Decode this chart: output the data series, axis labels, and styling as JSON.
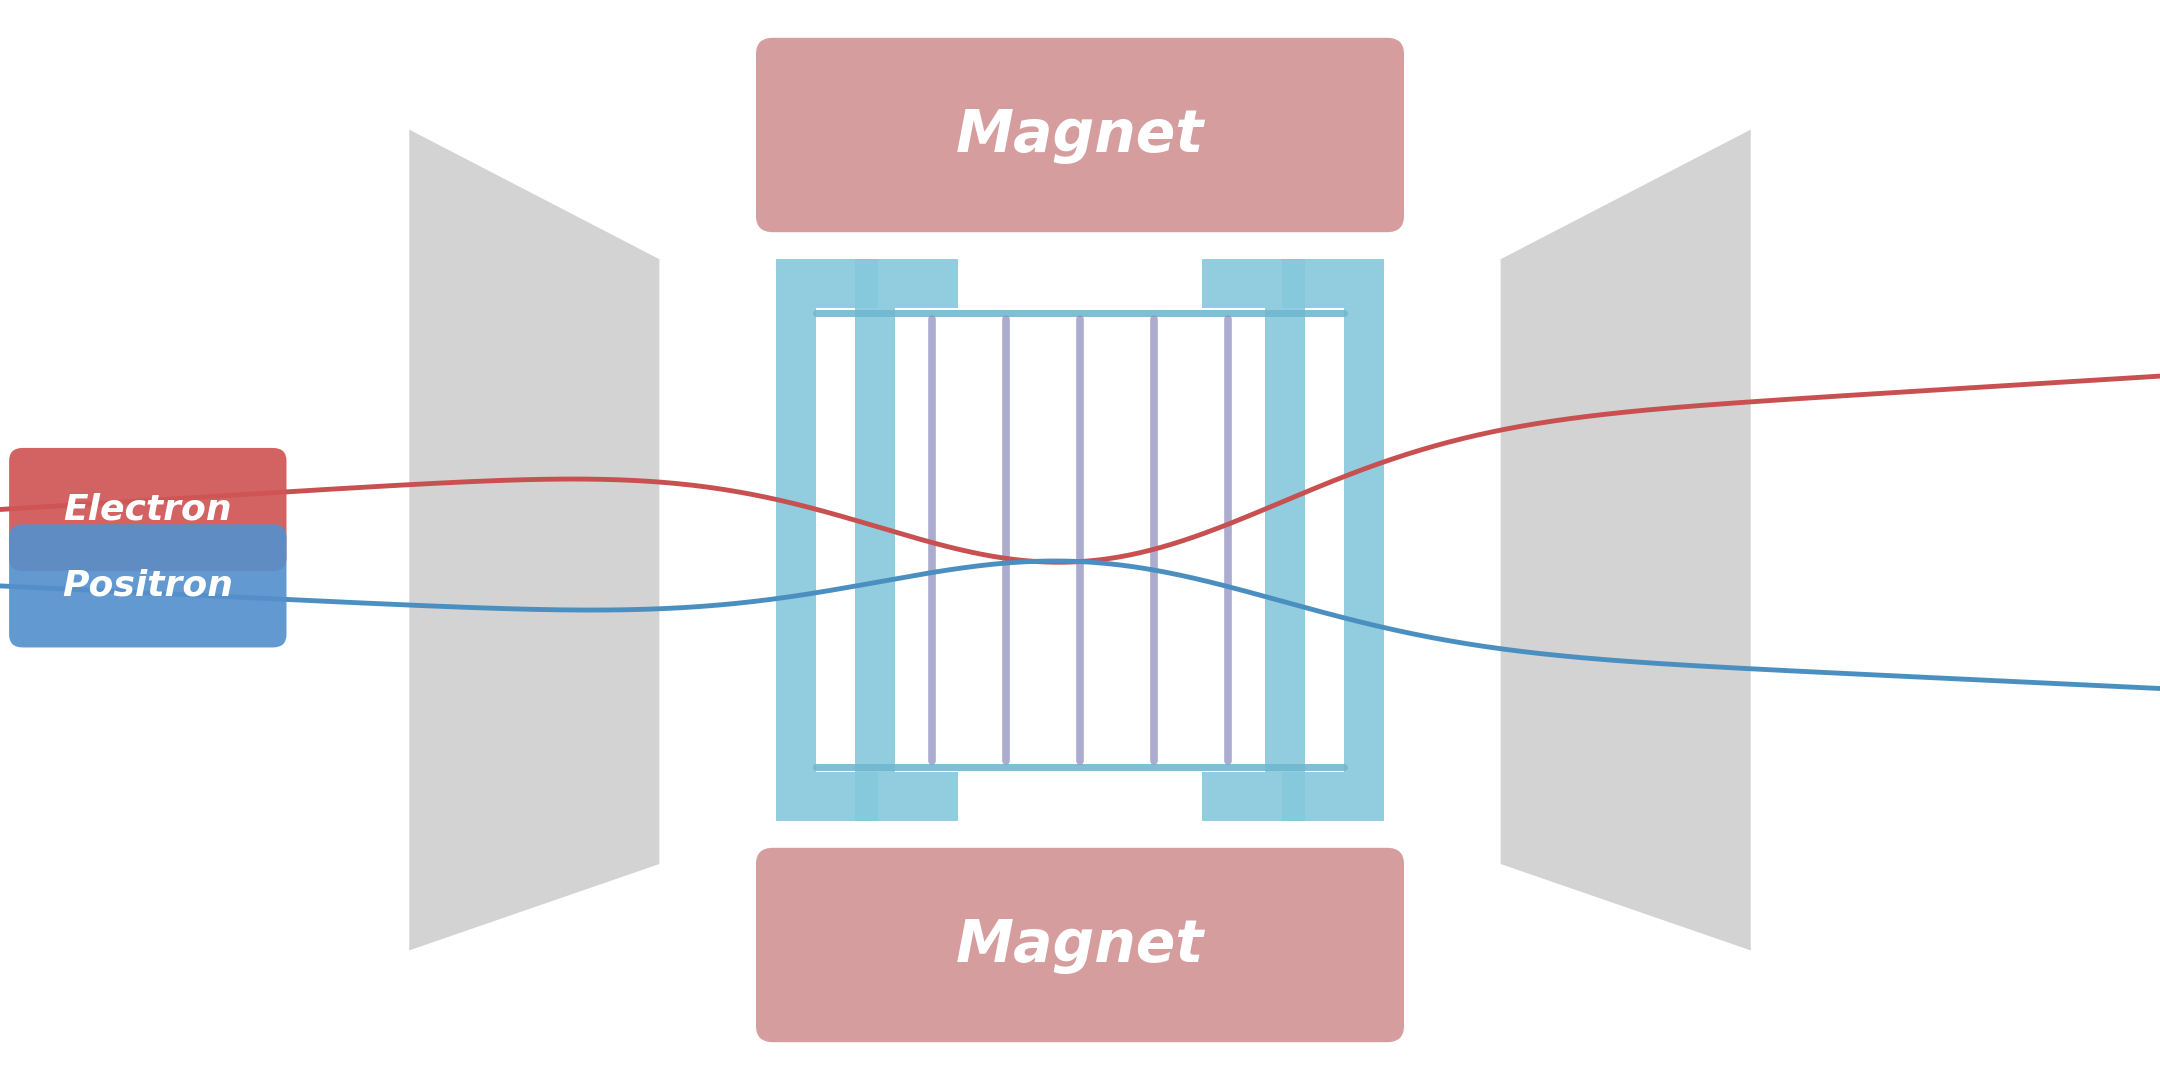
{
  "bg_color": "#ffffff",
  "electron_label": "Electron",
  "positron_label": "Positron",
  "magnet_label": "Magnet",
  "electron_color": "#c85050",
  "positron_color": "#4a8fc0",
  "electron_box_color": "#d05555",
  "positron_box_color": "#5590cc",
  "magnet_box_color": "#cc8888",
  "lens_color": "#b0b0b0",
  "lens_alpha": 0.55,
  "blue_panel_color": "#85c8dc",
  "blue_panel_alpha": 0.9,
  "purple_bar_color": "#9090c0",
  "purple_bar_alpha": 0.75,
  "cyan_line_color": "#70b8d0",
  "label_text_color": "#ffffff",
  "figsize": [
    21.6,
    10.8
  ],
  "dpi": 100
}
